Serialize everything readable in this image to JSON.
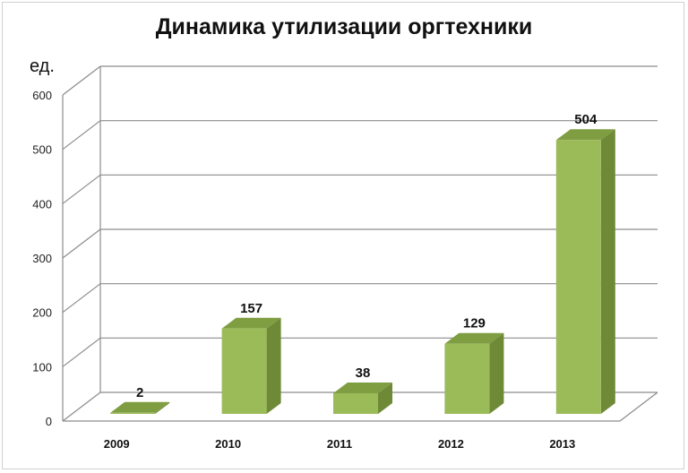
{
  "chart_data": {
    "type": "bar",
    "title": "Динамика утилизации оргтехники",
    "unit_label": "ед.",
    "categories": [
      "2009",
      "2010",
      "2011",
      "2012",
      "2013"
    ],
    "values": [
      2,
      157,
      38,
      129,
      504
    ],
    "ylim": [
      0,
      600
    ],
    "yticks": [
      "0",
      "100",
      "200",
      "300",
      "400",
      "500",
      "600"
    ],
    "data_labels": [
      "2",
      "157",
      "38",
      "129",
      "504"
    ],
    "grid": true,
    "style": "3d-column",
    "colors": {
      "front": "#9bbb59",
      "side": "#6e8a37",
      "top": "#7f9e42",
      "grid": "#8c8c8c"
    }
  }
}
